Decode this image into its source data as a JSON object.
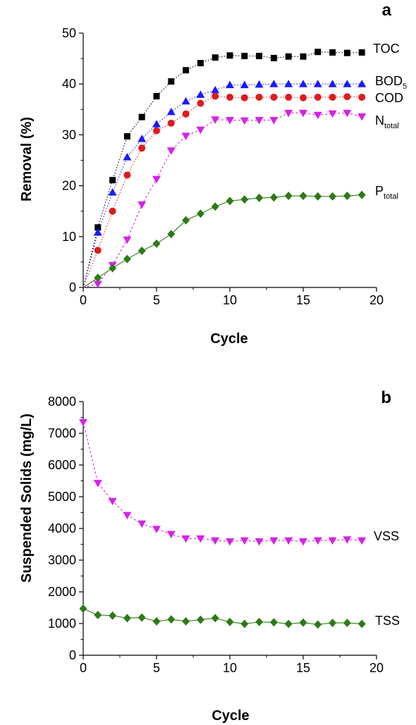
{
  "chart_data": [
    {
      "panel": "a",
      "type": "line",
      "xlabel": "Cycle",
      "ylabel": "Removal (%)",
      "xlim": [
        0,
        20
      ],
      "ylim": [
        0,
        50
      ],
      "xticks": [
        "0",
        "5",
        "10",
        "15",
        "20"
      ],
      "yticks": [
        "0",
        "10",
        "20",
        "30",
        "40",
        "50"
      ],
      "x": [
        0,
        1,
        2,
        3,
        4,
        5,
        6,
        7,
        8,
        9,
        10,
        11,
        12,
        13,
        14,
        15,
        16,
        17,
        18,
        19
      ],
      "series": [
        {
          "name": "TOC",
          "label_main": "TOC",
          "label_sub": "",
          "color": "#000000",
          "marker": "square",
          "line": "dotted",
          "values": [
            0,
            11.8,
            21.1,
            29.7,
            33.5,
            37.6,
            40.5,
            42.7,
            44.1,
            45.2,
            45.6,
            45.5,
            45.5,
            45.1,
            45.4,
            45.4,
            46.3,
            46.2,
            46.1,
            46.2
          ]
        },
        {
          "name": "BOD5",
          "label_main": "BOD",
          "label_sub": "5",
          "color": "#1a1aff",
          "marker": "triangle-up",
          "line": "dotted",
          "values": [
            0,
            10.8,
            18.7,
            25.6,
            29.2,
            32.1,
            34.5,
            36.6,
            37.9,
            38.8,
            39.8,
            39.8,
            39.9,
            40.0,
            40.0,
            40.0,
            40.0,
            40.0,
            40.0,
            40.0
          ]
        },
        {
          "name": "COD",
          "label_main": "COD",
          "label_sub": "",
          "color": "#dd1c1c",
          "marker": "circle",
          "line": "dotted",
          "values": [
            0,
            7.3,
            15.0,
            22.1,
            27.4,
            30.8,
            32.3,
            34.1,
            36.2,
            37.6,
            37.4,
            37.3,
            37.4,
            37.4,
            37.4,
            37.3,
            37.4,
            37.4,
            37.5,
            37.4
          ]
        },
        {
          "name": "Ntotal",
          "label_main": "N",
          "label_sub": "total",
          "color": "#d621e8",
          "marker": "triangle-down",
          "line": "dashed",
          "values": [
            0,
            0.7,
            4.4,
            9.4,
            16.3,
            21.3,
            26.9,
            29.8,
            31.0,
            33.0,
            32.9,
            32.8,
            32.9,
            32.9,
            34.3,
            34.3,
            33.9,
            34.2,
            34.3,
            33.6
          ]
        },
        {
          "name": "Ptotal",
          "label_main": "P",
          "label_sub": "total",
          "color": "#2d7a16",
          "marker": "diamond",
          "line": "solid",
          "values": [
            0,
            1.9,
            3.8,
            5.6,
            7.2,
            8.6,
            10.5,
            13.2,
            14.5,
            15.9,
            17.0,
            17.3,
            17.6,
            17.7,
            18.0,
            18.0,
            17.9,
            17.9,
            18.0,
            18.2
          ]
        }
      ]
    },
    {
      "panel": "b",
      "type": "line",
      "xlabel": "Cycle",
      "ylabel": "Suspended Solids (mg/L)",
      "xlim": [
        0,
        20
      ],
      "ylim": [
        0,
        8000
      ],
      "xticks": [
        "0",
        "5",
        "10",
        "15",
        "20"
      ],
      "yticks": [
        "0",
        "1000",
        "2000",
        "3000",
        "4000",
        "5000",
        "6000",
        "7000",
        "8000"
      ],
      "x": [
        0,
        1,
        2,
        3,
        4,
        5,
        6,
        7,
        8,
        9,
        10,
        11,
        12,
        13,
        14,
        15,
        16,
        17,
        18,
        19
      ],
      "series": [
        {
          "name": "VSS",
          "label_main": "VSS",
          "label_sub": "",
          "color": "#d621e8",
          "marker": "triangle-down",
          "line": "dashed",
          "values": [
            7350,
            5430,
            4860,
            4420,
            4150,
            3980,
            3820,
            3680,
            3680,
            3620,
            3590,
            3620,
            3590,
            3620,
            3620,
            3590,
            3620,
            3620,
            3650,
            3620
          ]
        },
        {
          "name": "TSS",
          "label_main": "TSS",
          "label_sub": "",
          "color": "#2d7a16",
          "marker": "diamond",
          "line": "solid",
          "values": [
            1470,
            1270,
            1250,
            1170,
            1190,
            1070,
            1130,
            1070,
            1120,
            1170,
            1050,
            990,
            1050,
            1040,
            990,
            1030,
            970,
            1020,
            1020,
            990
          ]
        }
      ]
    }
  ]
}
